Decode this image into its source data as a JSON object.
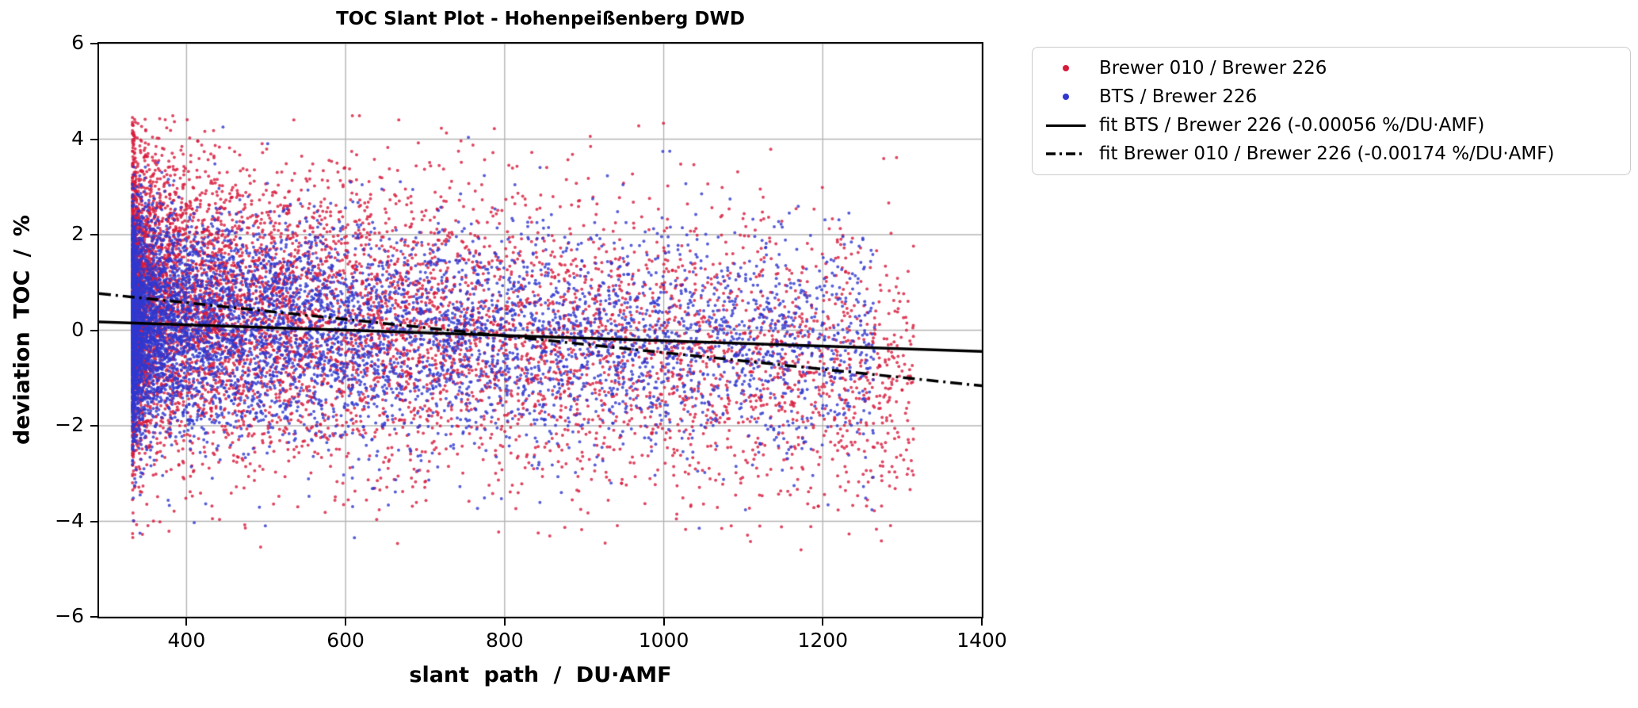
{
  "chart_data": {
    "type": "scatter",
    "title": "TOC Slant Plot - Hohenpeißenberg DWD",
    "xlabel": "slant path / DU·AMF",
    "ylabel": "deviation TOC / %",
    "xlim": [
      290,
      1400
    ],
    "ylim": [
      -6,
      6
    ],
    "xticks": [
      400,
      600,
      800,
      1000,
      1200,
      1400
    ],
    "yticks": [
      -6,
      -4,
      -2,
      0,
      2,
      4,
      6
    ],
    "grid": true,
    "grid_color": "#b4b4b4",
    "legend_position": "outside upper right",
    "series": [
      {
        "name": "Brewer 010 / Brewer 226",
        "kind": "scatter",
        "color": "#d81a3c",
        "marker": "dot",
        "n_points": 8000,
        "x_min": 332,
        "x_max": 1315,
        "x_skew": 2.6,
        "trend_intercept": 1.272,
        "trend_slope": -0.00174,
        "spread_sd": 1.55,
        "y_min": -4.6,
        "y_max": 4.5,
        "seed": 7
      },
      {
        "name": "BTS / Brewer 226",
        "kind": "scatter",
        "color": "#3038cf",
        "marker": "dot",
        "n_points": 7000,
        "x_min": 332,
        "x_max": 1265,
        "x_skew": 2.6,
        "trend_intercept": 0.338,
        "trend_slope": -0.00056,
        "spread_sd": 1.15,
        "y_min": -4.4,
        "y_max": 4.4,
        "seed": 11
      },
      {
        "name": "fit BTS / Brewer 226 (-0.00056 %/DU·AMF)",
        "kind": "line",
        "style": "solid",
        "color": "#000000",
        "intercept": 0.338,
        "slope": -0.00056
      },
      {
        "name": "fit Brewer 010 / Brewer 226 (-0.00174 %/DU·AMF)",
        "kind": "line",
        "style": "dashdot",
        "color": "#000000",
        "intercept": 1.272,
        "slope": -0.00174
      }
    ]
  }
}
